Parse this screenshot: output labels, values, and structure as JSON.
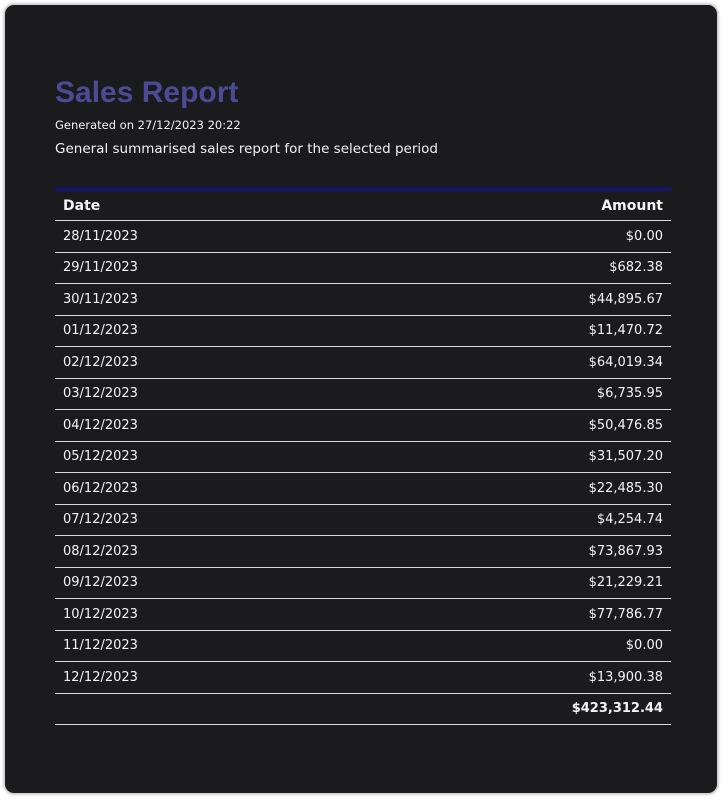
{
  "report": {
    "title": "Sales Report",
    "generated": "Generated on 27/12/2023 20:22",
    "description": "General summarised sales report for the selected period"
  },
  "table": {
    "headers": {
      "date": "Date",
      "amount": "Amount"
    },
    "rows": [
      {
        "date": "28/11/2023",
        "amount": "$0.00"
      },
      {
        "date": "29/11/2023",
        "amount": "$682.38"
      },
      {
        "date": "30/11/2023",
        "amount": "$44,895.67"
      },
      {
        "date": "01/12/2023",
        "amount": "$11,470.72"
      },
      {
        "date": "02/12/2023",
        "amount": "$64,019.34"
      },
      {
        "date": "03/12/2023",
        "amount": "$6,735.95"
      },
      {
        "date": "04/12/2023",
        "amount": "$50,476.85"
      },
      {
        "date": "05/12/2023",
        "amount": "$31,507.20"
      },
      {
        "date": "06/12/2023",
        "amount": "$22,485.30"
      },
      {
        "date": "07/12/2023",
        "amount": "$4,254.74"
      },
      {
        "date": "08/12/2023",
        "amount": "$73,867.93"
      },
      {
        "date": "09/12/2023",
        "amount": "$21,229.21"
      },
      {
        "date": "10/12/2023",
        "amount": "$77,786.77"
      },
      {
        "date": "11/12/2023",
        "amount": "$0.00"
      },
      {
        "date": "12/12/2023",
        "amount": "$13,900.38"
      }
    ],
    "total": "$423,312.44"
  },
  "colors": {
    "background": "#1b1b1d",
    "title": "#4b4a94",
    "header_rule": "#15136a",
    "text": "#f4f4f4"
  }
}
